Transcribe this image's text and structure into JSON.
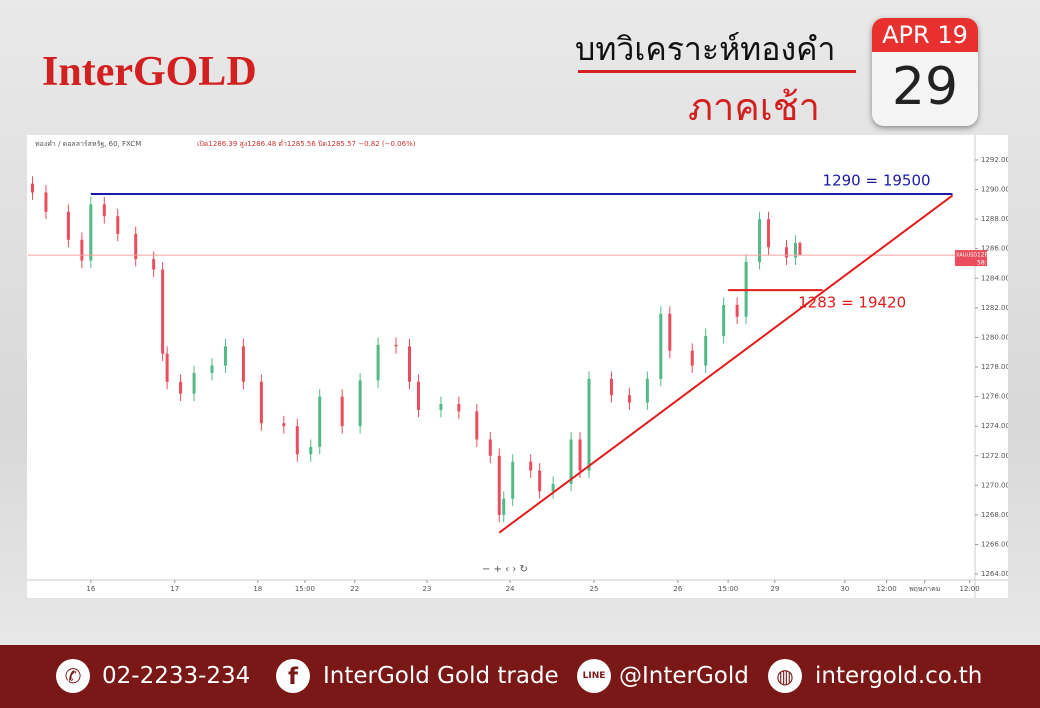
{
  "header": {
    "brand": "InterGOLD",
    "title": "บทวิเคราะห์ทองคำ",
    "subtitle": "ภาคเช้า",
    "calendar_month": "APR 19",
    "calendar_day": "29"
  },
  "chart_data": {
    "type": "candlestick",
    "symbol_line": "ทองคำ / ดอลลาร์สหรัฐ, 60, FXCM",
    "ohlc_line": "เปิด1286.39 สูง1286.48 ต่ำ1285.56 ปิด1285.57 −0.82 (−0.06%)",
    "price_tag": {
      "symbol": "XAUUSD",
      "price": "1285.57",
      "countdown": "58:08"
    },
    "up_color": "#53b987",
    "down_color": "#eb4d5c",
    "x": [
      0,
      3,
      8,
      11,
      13,
      16,
      19,
      23,
      27,
      29,
      30,
      33,
      36,
      40,
      43,
      47,
      51,
      56,
      59,
      62,
      64,
      69,
      73,
      77,
      81,
      84,
      86,
      91,
      95,
      99,
      102,
      104,
      105,
      107,
      111,
      113,
      116,
      120,
      122,
      124,
      129,
      133,
      137,
      140,
      142,
      147,
      150,
      154,
      157,
      159,
      162,
      164,
      168,
      170,
      171
    ],
    "open": [
      1290.4,
      1289.8,
      1288.5,
      1286.6,
      1285.2,
      1289.0,
      1288.2,
      1287.0,
      1285.3,
      1284.6,
      1278.9,
      1277.0,
      1276.2,
      1277.6,
      1278.1,
      1279.4,
      1277.0,
      1274.2,
      1274.0,
      1272.1,
      1272.6,
      1276.0,
      1274.0,
      1277.1,
      1279.5,
      1279.4,
      1277.0,
      1275.1,
      1275.5,
      1275.0,
      1273.1,
      1272.0,
      1268.0,
      1269.1,
      1271.6,
      1271.0,
      1269.6,
      1270.1,
      1273.1,
      1271.0,
      1277.2,
      1276.1,
      1275.6,
      1277.2,
      1281.6,
      1279.1,
      1278.1,
      1280.1,
      1282.2,
      1281.4,
      1285.1,
      1288.0,
      1286.1,
      1285.4,
      1286.39
    ],
    "high": [
      1290.9,
      1290.3,
      1289.0,
      1287.1,
      1289.5,
      1289.5,
      1288.7,
      1287.5,
      1285.8,
      1285.1,
      1279.4,
      1277.5,
      1278.1,
      1278.6,
      1279.9,
      1279.9,
      1277.5,
      1274.7,
      1274.5,
      1273.1,
      1276.5,
      1276.5,
      1277.6,
      1280.0,
      1280.0,
      1279.9,
      1277.5,
      1276.0,
      1276.0,
      1275.5,
      1273.6,
      1272.5,
      1269.6,
      1272.1,
      1272.1,
      1271.5,
      1270.6,
      1273.6,
      1273.6,
      1277.7,
      1277.7,
      1276.6,
      1277.7,
      1282.1,
      1282.1,
      1279.6,
      1280.6,
      1282.7,
      1282.7,
      1285.6,
      1288.5,
      1288.5,
      1286.6,
      1286.9,
      1286.48
    ],
    "low": [
      1289.3,
      1288.0,
      1286.1,
      1284.7,
      1284.7,
      1287.7,
      1286.5,
      1284.8,
      1284.1,
      1278.4,
      1276.5,
      1275.7,
      1275.7,
      1277.1,
      1277.6,
      1276.5,
      1273.7,
      1273.5,
      1271.6,
      1271.6,
      1272.1,
      1273.5,
      1273.5,
      1276.6,
      1278.9,
      1276.5,
      1274.6,
      1274.6,
      1274.5,
      1272.6,
      1271.5,
      1267.5,
      1267.5,
      1268.6,
      1270.5,
      1269.1,
      1269.1,
      1269.6,
      1270.5,
      1270.5,
      1275.6,
      1275.1,
      1275.1,
      1276.7,
      1278.6,
      1277.6,
      1277.6,
      1279.6,
      1280.9,
      1280.9,
      1284.6,
      1285.6,
      1284.9,
      1284.9,
      1285.56
    ],
    "close": [
      1289.8,
      1288.5,
      1286.6,
      1285.2,
      1289.0,
      1288.2,
      1287.0,
      1285.3,
      1284.6,
      1278.9,
      1277.0,
      1276.2,
      1277.6,
      1278.1,
      1279.4,
      1277.0,
      1274.2,
      1274.0,
      1272.1,
      1272.6,
      1276.0,
      1274.0,
      1277.1,
      1279.5,
      1279.4,
      1277.0,
      1275.1,
      1275.5,
      1275.0,
      1273.1,
      1272.0,
      1268.0,
      1269.1,
      1271.6,
      1271.0,
      1269.6,
      1270.1,
      1273.1,
      1271.0,
      1277.2,
      1276.1,
      1275.6,
      1277.2,
      1281.6,
      1279.1,
      1278.1,
      1280.1,
      1282.2,
      1281.4,
      1285.1,
      1288.0,
      1286.1,
      1285.4,
      1286.39,
      1285.57
    ],
    "xlim": [
      -1,
      210
    ],
    "ylim": [
      1263.6,
      1293.35
    ],
    "xticks": [
      {
        "value": 13,
        "label": "16"
      },
      {
        "value": 31.7,
        "label": "17"
      },
      {
        "value": 50.2,
        "label": "18"
      },
      {
        "value": 60.7,
        "label": "15:00"
      },
      {
        "value": 71.8,
        "label": "22"
      },
      {
        "value": 87.9,
        "label": "23"
      },
      {
        "value": 106.4,
        "label": "24"
      },
      {
        "value": 125.1,
        "label": "25"
      },
      {
        "value": 143.8,
        "label": "26"
      },
      {
        "value": 155,
        "label": "15:00"
      },
      {
        "value": 165.4,
        "label": "29"
      },
      {
        "value": 181,
        "label": "30"
      },
      {
        "value": 190.3,
        "label": "12:00"
      },
      {
        "value": 198.8,
        "label": "พฤษภาคม"
      },
      {
        "value": 208.8,
        "label": "12:00"
      }
    ],
    "yticks": [
      {
        "value": 1264,
        "label": "1264.00"
      },
      {
        "value": 1266,
        "label": "1266.00"
      },
      {
        "value": 1268,
        "label": "1268.00"
      },
      {
        "value": 1270,
        "label": "1270.00"
      },
      {
        "value": 1272,
        "label": "1272.00"
      },
      {
        "value": 1274,
        "label": "1274.00"
      },
      {
        "value": 1276,
        "label": "1276.00"
      },
      {
        "value": 1278,
        "label": "1278.00"
      },
      {
        "value": 1280,
        "label": "1280.00"
      },
      {
        "value": 1282,
        "label": "1282.00"
      },
      {
        "value": 1284,
        "label": "1284.00"
      },
      {
        "value": 1286,
        "label": "1286.00"
      },
      {
        "value": 1288,
        "label": "1288.00"
      },
      {
        "value": 1290,
        "label": "1290.00"
      },
      {
        "value": 1292,
        "label": "1292.00"
      }
    ],
    "annotations": [
      {
        "label": "1290 = 19500",
        "color": "#1a1aa8",
        "x": [
          13,
          205
        ],
        "y": [
          1289.7,
          1289.7
        ]
      },
      {
        "label": "1283 = 19420",
        "color": "#e31b1b",
        "x": [
          155,
          176
        ],
        "y": [
          1283.2,
          1283.2
        ]
      },
      {
        "color": "#e31b1b",
        "x": [
          104,
          205
        ],
        "y": [
          1266.8,
          1289.6
        ]
      }
    ]
  },
  "footer": {
    "phone": "02-2233-234",
    "facebook": "InterGold Gold trade",
    "line": "@InterGold",
    "website": "intergold.co.th"
  }
}
